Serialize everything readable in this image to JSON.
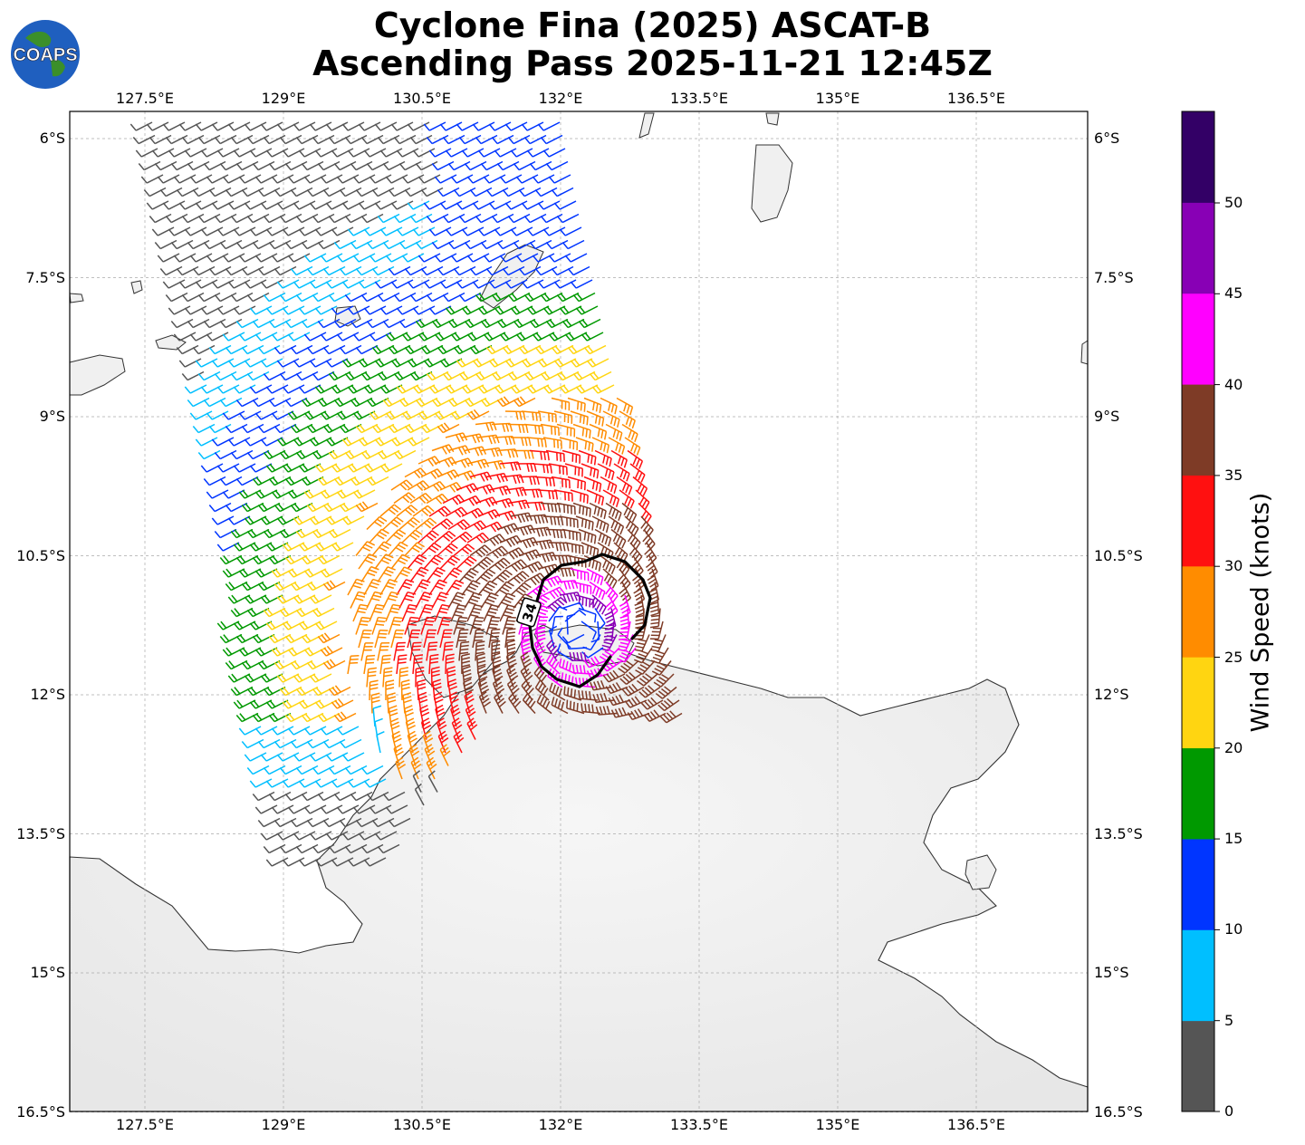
{
  "title_line1": "Cyclone Fina (2025) ASCAT-B",
  "title_line2": "Ascending Pass 2025-11-21 12:45Z",
  "logo_text": "COAPS",
  "lon_labels": [
    "127.5°E",
    "129°E",
    "130.5°E",
    "132°E",
    "133.5°E",
    "135°E",
    "136.5°E"
  ],
  "lat_labels": [
    "6°S",
    "7.5°S",
    "9°S",
    "10.5°S",
    "12°S",
    "13.5°S",
    "15°S",
    "16.5°S"
  ],
  "contour_label": "34",
  "colorbar": {
    "title": "Wind Speed (knots)",
    "ticks": [
      "0",
      "5",
      "10",
      "15",
      "20",
      "25",
      "30",
      "35",
      "40",
      "45",
      "50"
    ],
    "colors": [
      "#555555",
      "#00bfff",
      "#0035ff",
      "#009900",
      "#ffd511",
      "#ff8c00",
      "#ff1010",
      "#7e3b26",
      "#ff00ff",
      "#8800b5",
      "#330066"
    ]
  },
  "chart_data": {
    "type": "map",
    "lon_range": [
      126.7,
      137.7
    ],
    "lat_range": [
      -16.5,
      -5.7
    ],
    "grid": true,
    "cyclone_center_lon": 132.2,
    "cyclone_center_lat": -11.3,
    "contour_34kt": "closed-ring-around-center"
  }
}
